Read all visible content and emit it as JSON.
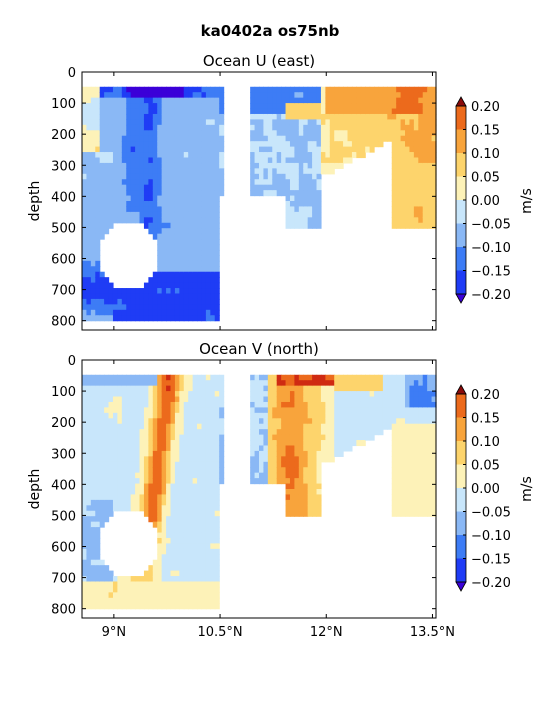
{
  "suptitle": "ka0402a os75nb",
  "chart_data": [
    {
      "type": "heatmap",
      "title": "Ocean U (east)",
      "ylabel": "depth",
      "ylim": [
        830,
        0
      ],
      "yticks": [
        0,
        100,
        200,
        300,
        400,
        500,
        600,
        700,
        800
      ],
      "xlim": [
        8.55,
        13.55
      ],
      "xticks": [
        9.0,
        10.5,
        12.0,
        13.5
      ],
      "xtick_labels": [],
      "colorbar": {
        "label": "m/s",
        "ticks": [
          "0.20",
          "0.15",
          "0.10",
          "0.05",
          "0.00",
          "−0.05",
          "−0.10",
          "−0.15",
          "−0.20"
        ],
        "levels": [
          0.2,
          0.15,
          0.1,
          0.05,
          0.0,
          -0.05,
          -0.1,
          -0.15,
          -0.2
        ]
      },
      "grid": false
    },
    {
      "type": "heatmap",
      "title": "Ocean V (north)",
      "ylabel": "depth",
      "ylim": [
        830,
        0
      ],
      "yticks": [
        0,
        100,
        200,
        300,
        400,
        500,
        600,
        700,
        800
      ],
      "xlim": [
        8.55,
        13.55
      ],
      "xticks": [
        9.0,
        10.5,
        12.0,
        13.5
      ],
      "xtick_labels": [
        "9°N",
        "10.5°N",
        "12°N",
        "13.5°N"
      ],
      "colorbar": {
        "label": "m/s",
        "ticks": [
          "0.20",
          "0.15",
          "0.10",
          "0.05",
          "0.00",
          "−0.05",
          "−0.10",
          "−0.15",
          "−0.20"
        ],
        "levels": [
          0.2,
          0.15,
          0.1,
          0.05,
          0.0,
          -0.05,
          -0.1,
          -0.15,
          -0.2
        ]
      },
      "grid": false
    }
  ],
  "colors": {
    "levels": [
      "#3b00d8",
      "#1f3cf5",
      "#3d7cf5",
      "#8ab8f5",
      "#c8e6fb",
      "#fdf2b8",
      "#fdd46c",
      "#f8a43c",
      "#ec6a1c",
      "#cf2a12",
      "#8a0a0a"
    ]
  }
}
